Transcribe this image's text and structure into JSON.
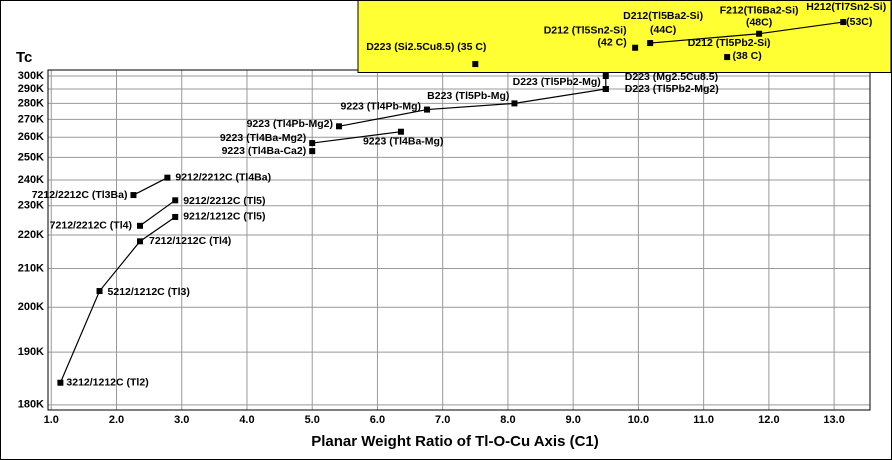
{
  "chart_data": [
    {
      "type": "scatter",
      "y_title": "Tc",
      "x_title": "Planar Weight Ratio of Tl-O-Cu Axis (C1)",
      "yscale": "reciprocal-square",
      "color": "#000000",
      "grid": true,
      "xlim": [
        0.95,
        13.55
      ],
      "ylim": [
        179.1,
        305
      ],
      "xticks": [
        {
          "value": 1,
          "label": "1.0"
        },
        {
          "value": 2,
          "label": "2.0"
        },
        {
          "value": 3,
          "label": "3.0"
        },
        {
          "value": 4,
          "label": "4.0"
        },
        {
          "value": 5,
          "label": "5.0"
        },
        {
          "value": 6,
          "label": "6.0"
        },
        {
          "value": 7,
          "label": "7.0"
        },
        {
          "value": 8,
          "label": "8.0"
        },
        {
          "value": 9,
          "label": "9.0"
        },
        {
          "value": 10,
          "label": "10.0"
        },
        {
          "value": 11,
          "label": "11.0"
        },
        {
          "value": 12,
          "label": "12.0"
        },
        {
          "value": 13,
          "label": "13.0"
        }
      ],
      "yticks": [
        {
          "value": 180,
          "label": "180K"
        },
        {
          "value": 190,
          "label": "190K"
        },
        {
          "value": 200,
          "label": "200K"
        },
        {
          "value": 210,
          "label": "210K"
        },
        {
          "value": 220,
          "label": "220K"
        },
        {
          "value": 230,
          "label": "230K"
        },
        {
          "value": 240,
          "label": "240K"
        },
        {
          "value": 250,
          "label": "250K"
        },
        {
          "value": 260,
          "label": "260K"
        },
        {
          "value": 270,
          "label": "270K"
        },
        {
          "value": 280,
          "label": "280K"
        },
        {
          "value": 290,
          "label": "290K"
        },
        {
          "value": 300,
          "label": "300K"
        }
      ],
      "series": [
        {
          "x": [
            1.14,
            1.74,
            2.36,
            2.9
          ],
          "values": [
            184,
            204,
            218,
            226
          ],
          "labels": [
            "3212/1212C (Tl2)",
            "5212/1212C (Tl3)",
            "7212/1212C (Tl4)",
            "9212/1212C (Tl5)"
          ]
        },
        {
          "x": [
            2.36,
            2.9
          ],
          "values": [
            223,
            232
          ],
          "labels": [
            "7212/2212C (Tl4)",
            "9212/2212C (Tl5)"
          ]
        },
        {
          "x": [
            2.26,
            2.78
          ],
          "values": [
            234,
            241
          ],
          "labels": [
            "7212/2212C (Tl3Ba)",
            "9212/2212C (Tl4Ba)"
          ]
        },
        {
          "x": [
            5.0,
            6.36
          ],
          "values": [
            257,
            263
          ],
          "labels": [
            "9223 (Tl4Ba-Mg2)",
            "9223 (Tl4Ba-Mg)"
          ]
        },
        {
          "x": [
            5.0
          ],
          "values": [
            253
          ],
          "labels": [
            "9223 (Tl4Ba-Ca2)"
          ]
        },
        {
          "x": [
            5.41,
            6.76,
            8.1,
            9.5,
            9.5
          ],
          "values": [
            266,
            276,
            280,
            290,
            300
          ],
          "labels": [
            "9223 (Tl4Pb-Mg2)",
            "9223 (Tl4Pb-Mg)",
            "B223 (Tl5Pb-Mg)",
            "D223 (Tl5Pb2-Mg)",
            "D223 (Mg2.5Cu8.5)"
          ]
        },
        {
          "x": [
            9.5
          ],
          "values": [
            290
          ],
          "labels": [
            "D223 (Tl5Pb2-Mg2)"
          ]
        }
      ]
    },
    {
      "type": "scatter",
      "color": "#000000",
      "background": "#ffff33",
      "xlim": [
        0.95,
        13.55
      ],
      "ylim": [
        31.6,
        61.6
      ],
      "series": [
        {
          "x": [
            7.5
          ],
          "values": [
            35
          ],
          "labels": [
            "D223 (Si2.5Cu8.5) (35 C)"
          ]
        },
        {
          "x": [
            9.95
          ],
          "values": [
            42
          ],
          "labels": [
            [
              "D212 (Tl5Sn2-Si)",
              "(42 C)"
            ]
          ]
        },
        {
          "x": [
            10.18,
            11.85,
            13.14
          ],
          "values": [
            44,
            48,
            53
          ],
          "labels": [
            [
              "D212(Tl5Ba2-Si)",
              "(44C)"
            ],
            [
              "F212(Tl6Ba2-Si)",
              "(48C)"
            ],
            [
              "H212(Tl7Sn2-Si)",
              "(53C)"
            ]
          ]
        },
        {
          "x": [
            11.36
          ],
          "values": [
            38
          ],
          "labels": [
            [
              "D212 (Tl5Pb2-Si)",
              "(38 C)"
            ]
          ]
        }
      ]
    }
  ]
}
